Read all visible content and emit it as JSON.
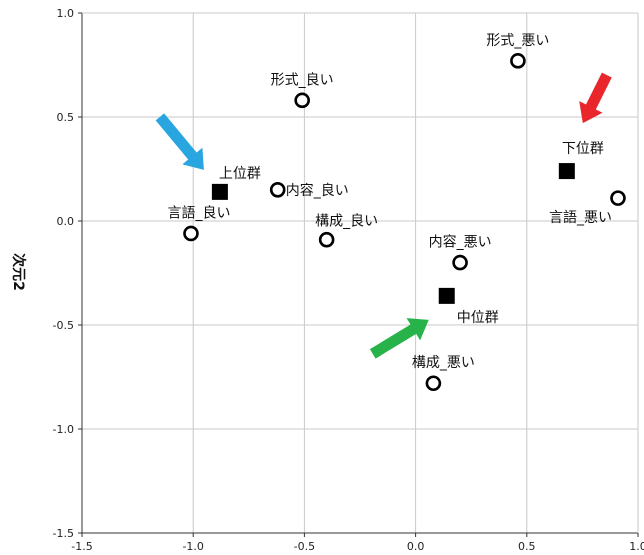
{
  "chart_data": {
    "type": "scatter",
    "title": "",
    "xlabel": "",
    "ylabel": "次元2",
    "xlim": [
      -1.5,
      1.0
    ],
    "ylim": [
      -1.5,
      1.0
    ],
    "xticks": [
      -1.5,
      -1.0,
      -0.5,
      0.0,
      0.5,
      1.0
    ],
    "xtick_labels": [
      "-1.5",
      "-1.0",
      "-0.5",
      "0.0",
      "0.5",
      "1.0"
    ],
    "yticks": [
      -1.5,
      -1.0,
      -0.5,
      0.0,
      0.5,
      1.0
    ],
    "ytick_labels": [
      "-1.5",
      "-1.0",
      "-0.5",
      "0.0",
      "0.5",
      "1.0"
    ],
    "grid": true,
    "series": [
      {
        "marker": "open-circle",
        "color": "#000000",
        "points": [
          {
            "label": "形式_悪い",
            "x": 0.46,
            "y": 0.77
          },
          {
            "label": "形式_良い",
            "x": -0.51,
            "y": 0.58
          },
          {
            "label": "内容_良い",
            "x": -0.62,
            "y": 0.15
          },
          {
            "label": "言語_良い",
            "x": -1.01,
            "y": -0.06
          },
          {
            "label": "構成_良い",
            "x": -0.4,
            "y": -0.09
          },
          {
            "label": "言語_悪い",
            "x": 0.91,
            "y": 0.11
          },
          {
            "label": "内容_悪い",
            "x": 0.2,
            "y": -0.2
          },
          {
            "label": "構成_悪い",
            "x": 0.08,
            "y": -0.78
          }
        ]
      },
      {
        "marker": "filled-square",
        "color": "#000000",
        "points": [
          {
            "label": "上位群",
            "x": -0.88,
            "y": 0.14
          },
          {
            "label": "下位群",
            "x": 0.68,
            "y": 0.24
          },
          {
            "label": "中位群",
            "x": 0.14,
            "y": -0.36
          }
        ]
      }
    ],
    "annotations": [
      {
        "type": "arrow",
        "color": "#29a6e0",
        "points_to": "上位群"
      },
      {
        "type": "arrow",
        "color": "#e8262b",
        "points_to": "下位群"
      },
      {
        "type": "arrow",
        "color": "#27b34a",
        "points_to": "中位群"
      }
    ]
  }
}
